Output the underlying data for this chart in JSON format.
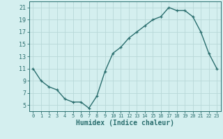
{
  "x": [
    0,
    1,
    2,
    3,
    4,
    5,
    6,
    7,
    8,
    9,
    10,
    11,
    12,
    13,
    14,
    15,
    16,
    17,
    18,
    19,
    20,
    21,
    22,
    23
  ],
  "y": [
    11,
    9,
    8,
    7.5,
    6,
    5.5,
    5.5,
    4.5,
    6.5,
    10.5,
    13.5,
    14.5,
    16,
    17,
    18,
    19,
    19.5,
    21,
    20.5,
    20.5,
    19.5,
    17,
    13.5,
    11
  ],
  "line_color": "#2a6e6e",
  "marker": "+",
  "bg_color": "#d4efef",
  "grid_color": "#b8d8d8",
  "xlabel": "Humidex (Indice chaleur)",
  "ylabel_ticks": [
    5,
    7,
    9,
    11,
    13,
    15,
    17,
    19,
    21
  ],
  "xlim": [
    -0.5,
    23.5
  ],
  "ylim": [
    4.0,
    22.0
  ],
  "xtick_fontsize": 5.0,
  "ytick_fontsize": 6.0,
  "xlabel_fontsize": 7.0
}
